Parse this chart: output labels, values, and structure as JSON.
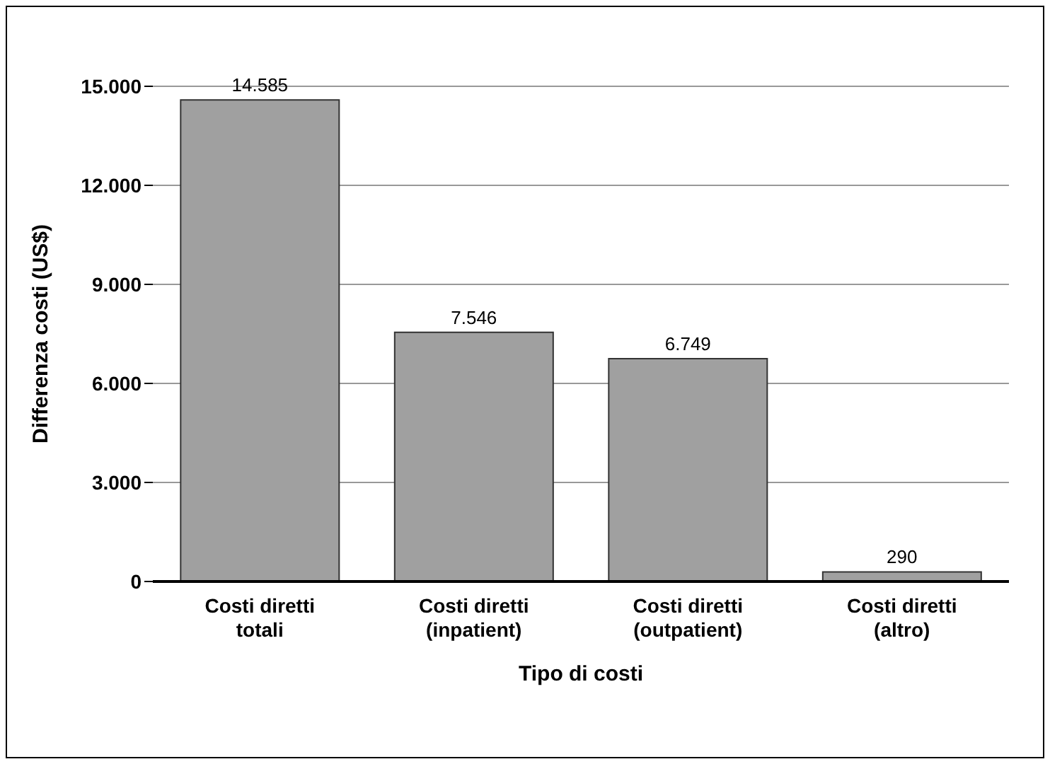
{
  "chart_data": {
    "type": "bar",
    "xlabel": "Tipo di costi",
    "ylabel": "Differenza costi (US$)",
    "categories": [
      "Costi diretti\ntotali",
      "Costi diretti\n(inpatient)",
      "Costi diretti\n(outpatient)",
      "Costi diretti\n(altro)"
    ],
    "values": [
      14585,
      7546,
      6749,
      290
    ],
    "value_labels": [
      "14.585",
      "7.546",
      "6.749",
      "290"
    ],
    "color": "#a0a0a0",
    "ylim": [
      0,
      15000
    ],
    "yticks": [
      {
        "value": 0,
        "label": "0"
      },
      {
        "value": 3000,
        "label": "3.000"
      },
      {
        "value": 6000,
        "label": "6.000"
      },
      {
        "value": 9000,
        "label": "9.000"
      },
      {
        "value": 12000,
        "label": "12.000"
      },
      {
        "value": 15000,
        "label": "15.000"
      }
    ],
    "grid": "y"
  }
}
